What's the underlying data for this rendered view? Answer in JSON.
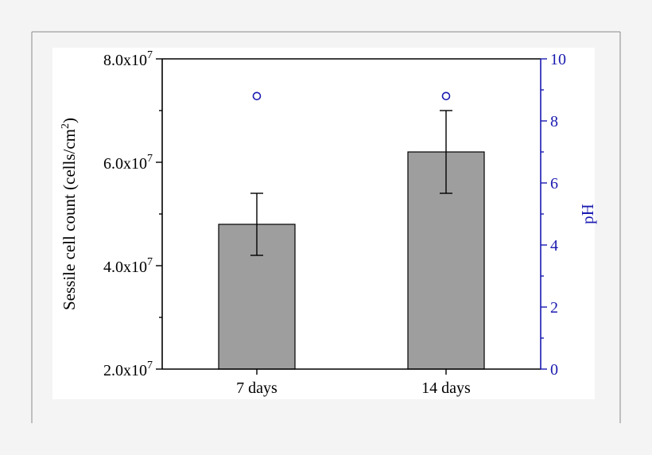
{
  "chart_data": {
    "type": "bar",
    "categories": [
      "7 days",
      "14 days"
    ],
    "series": [
      {
        "values": [
          48000000.0,
          62000000.0
        ],
        "error": [
          6000000.0,
          8000000.0
        ],
        "color": "#9e9e9e",
        "axis": "left"
      },
      {
        "type": "scatter",
        "marker": "open-circle",
        "values": [
          8.8,
          8.8
        ],
        "color": "#1a1ab0",
        "axis": "right"
      }
    ],
    "ylim": [
      20000000.0,
      80000000.0
    ],
    "y2lim": [
      0,
      10
    ],
    "yticks": [
      {
        "value": 20000000.0,
        "mantissa": "2.0x10",
        "exp": "7"
      },
      {
        "value": 40000000.0,
        "mantissa": "4.0x10",
        "exp": "7"
      },
      {
        "value": 60000000.0,
        "mantissa": "6.0x10",
        "exp": "7"
      },
      {
        "value": 80000000.0,
        "mantissa": "8.0x10",
        "exp": "7"
      }
    ],
    "yminor": [
      30000000.0,
      50000000.0,
      70000000.0
    ],
    "y2ticks": [
      {
        "value": 0,
        "label": "0"
      },
      {
        "value": 2,
        "label": "2"
      },
      {
        "value": 4,
        "label": "4"
      },
      {
        "value": 6,
        "label": "6"
      },
      {
        "value": 8,
        "label": "8"
      },
      {
        "value": 10,
        "label": "10"
      }
    ],
    "y2minor": [
      1,
      3,
      5,
      7,
      9
    ],
    "ylabel": {
      "main": "Sessile cell count (cells/cm",
      "sup": "2",
      "end": ")"
    },
    "y2label": "pH",
    "grid": false
  }
}
